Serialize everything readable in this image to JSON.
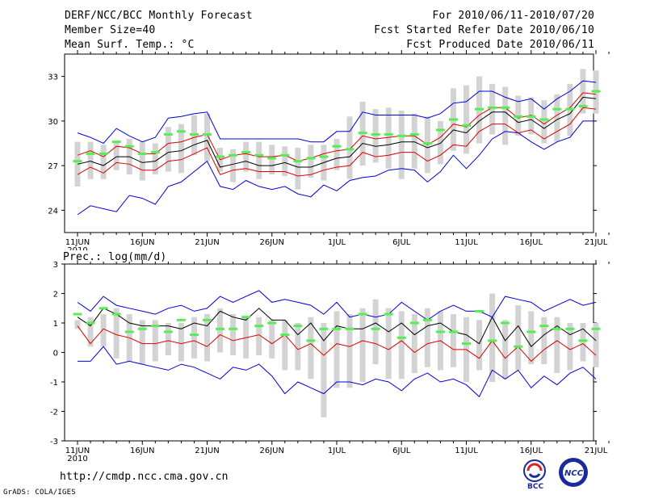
{
  "header": {
    "title": "DERF/NCC/BCC Monthly Forecast",
    "member_size": "Member Size=40",
    "variable1": "Mean Surf. Temp.: °C",
    "period": "For 2010/06/11-2010/07/20",
    "refer_date": "Fcst Started Refer Date 2010/06/10",
    "produced_date": "Fcst Produced Date 2010/06/11"
  },
  "footer": {
    "url": "http://cmdp.ncc.cma.gov.cn",
    "grads": "GrADS: COLA/IGES",
    "logo_bcc": "BCC",
    "logo_ncc": "NCC"
  },
  "colors": {
    "max_min": "#0000dd",
    "ens_mean": "#000000",
    "quantile": "#dd0000",
    "box": "#d3d3d3",
    "marker": "#55ee55"
  },
  "chart_data": [
    {
      "type": "line",
      "title": "Mean Surf. Temp.: °C",
      "x_tick_labels": [
        "11JUN",
        "16JUN",
        "21JUN",
        "26JUN",
        "1JUL",
        "6JUL",
        "11JUL",
        "16JUL",
        "21JUL"
      ],
      "x_start_label": "2010",
      "ylim": [
        22.5,
        34.5
      ],
      "y_ticks": [
        24,
        27,
        30,
        33
      ],
      "series": [
        {
          "name": "max",
          "values": [
            29.2,
            28.9,
            28.5,
            29.5,
            29.0,
            28.6,
            28.9,
            30.2,
            30.3,
            30.5,
            30.6,
            28.8,
            28.8,
            28.8,
            28.8,
            28.8,
            28.8,
            28.8,
            28.6,
            28.6,
            29.3,
            29.3,
            30.6,
            30.4,
            30.4,
            30.4,
            30.4,
            30.2,
            30.5,
            31.2,
            31.3,
            32.0,
            32.0,
            31.6,
            31.3,
            31.5,
            30.8,
            31.5,
            32.0,
            32.7,
            32.6
          ]
        },
        {
          "name": "upper",
          "values": [
            27.7,
            28.0,
            27.6,
            28.3,
            28.2,
            27.8,
            27.8,
            28.5,
            28.6,
            28.9,
            29.1,
            27.4,
            27.7,
            27.8,
            27.6,
            27.6,
            27.7,
            27.3,
            27.5,
            27.8,
            28.0,
            28.1,
            29.0,
            28.8,
            28.9,
            29.0,
            29.0,
            28.4,
            28.9,
            29.8,
            29.6,
            30.4,
            30.9,
            30.9,
            30.2,
            30.4,
            29.8,
            30.4,
            30.9,
            31.9,
            31.8
          ]
        },
        {
          "name": "mean",
          "values": [
            27.1,
            27.3,
            27.0,
            27.6,
            27.6,
            27.2,
            27.3,
            27.9,
            28.0,
            28.4,
            28.7,
            26.9,
            27.1,
            27.3,
            27.0,
            27.0,
            27.2,
            26.9,
            26.9,
            27.2,
            27.5,
            27.6,
            28.5,
            28.3,
            28.4,
            28.6,
            28.6,
            28.2,
            28.5,
            29.4,
            29.2,
            30.0,
            30.6,
            30.6,
            29.9,
            30.1,
            29.5,
            30.1,
            30.5,
            31.6,
            31.5
          ]
        },
        {
          "name": "lower",
          "values": [
            26.4,
            26.9,
            26.5,
            27.2,
            27.1,
            26.7,
            26.7,
            27.3,
            27.4,
            27.8,
            28.2,
            26.4,
            26.7,
            26.8,
            26.6,
            26.6,
            26.6,
            26.3,
            26.4,
            26.7,
            26.9,
            27.0,
            27.9,
            27.6,
            27.7,
            27.9,
            27.9,
            27.3,
            27.7,
            28.4,
            28.3,
            29.3,
            29.8,
            29.8,
            29.2,
            29.4,
            28.8,
            29.3,
            29.8,
            30.9,
            30.8
          ]
        },
        {
          "name": "min",
          "values": [
            23.7,
            24.3,
            24.1,
            23.9,
            25.0,
            24.8,
            24.4,
            25.6,
            25.9,
            26.6,
            27.3,
            25.6,
            25.4,
            26.0,
            25.6,
            25.4,
            25.6,
            25.1,
            24.9,
            25.7,
            25.3,
            26.0,
            26.2,
            26.3,
            26.7,
            26.8,
            26.7,
            25.9,
            26.6,
            27.7,
            26.8,
            27.7,
            28.8,
            29.3,
            29.2,
            28.6,
            28.1,
            28.6,
            28.9,
            30.0,
            30.0
          ]
        },
        {
          "name": "box_low",
          "values": [
            25.6,
            26.1,
            26.1,
            26.7,
            26.4,
            26.0,
            26.4,
            26.6,
            26.5,
            27.7,
            27.3,
            26.6,
            25.9,
            26.6,
            26.1,
            26.4,
            26.3,
            25.4,
            26.2,
            26.0,
            26.7,
            26.1,
            27.0,
            27.2,
            26.8,
            26.1,
            26.8,
            26.5,
            27.1,
            28.0,
            27.8,
            28.5,
            29.1,
            28.4,
            29.0,
            29.1,
            28.5,
            28.6,
            29.0,
            30.5,
            30.5
          ]
        },
        {
          "name": "box_high",
          "values": [
            28.6,
            28.6,
            28.4,
            28.6,
            28.8,
            28.6,
            28.5,
            29.6,
            29.8,
            30.4,
            30.5,
            28.2,
            28.1,
            28.6,
            28.6,
            28.4,
            28.3,
            28.2,
            28.4,
            28.4,
            28.8,
            30.3,
            31.3,
            30.8,
            30.9,
            30.7,
            30.5,
            30.3,
            30.0,
            32.2,
            32.4,
            33.0,
            32.5,
            32.3,
            31.7,
            31.6,
            31.4,
            31.8,
            32.5,
            33.5,
            33.4
          ]
        },
        {
          "name": "marker",
          "values": [
            27.3,
            27.8,
            27.8,
            28.6,
            28.3,
            27.8,
            27.9,
            29.1,
            29.3,
            29.1,
            29.1,
            27.6,
            27.7,
            27.9,
            27.7,
            27.5,
            27.7,
            27.3,
            27.5,
            27.6,
            28.3,
            28.1,
            29.2,
            29.1,
            29.1,
            29.0,
            29.1,
            28.5,
            29.4,
            30.1,
            29.7,
            30.8,
            30.9,
            30.9,
            30.3,
            30.3,
            30.1,
            30.8,
            30.8,
            31.0,
            32.0
          ]
        }
      ]
    },
    {
      "type": "line",
      "title": "Prec.: log(mm/d)",
      "x_tick_labels": [
        "11JUN",
        "16JUN",
        "21JUN",
        "26JUN",
        "1JUL",
        "6JUL",
        "11JUL",
        "16JUL",
        "21JUL"
      ],
      "x_start_label": "2010",
      "ylim": [
        -3,
        3
      ],
      "y_ticks": [
        -3,
        -2,
        -1,
        0,
        1,
        2,
        3
      ],
      "series": [
        {
          "name": "max",
          "values": [
            1.7,
            1.4,
            1.9,
            1.6,
            1.5,
            1.4,
            1.3,
            1.5,
            1.6,
            1.4,
            1.5,
            1.9,
            1.7,
            1.9,
            2.1,
            1.7,
            1.8,
            1.7,
            1.6,
            1.3,
            1.7,
            1.2,
            1.3,
            1.2,
            1.3,
            1.7,
            1.4,
            1.1,
            1.4,
            1.6,
            1.4,
            1.4,
            1.2,
            1.9,
            1.8,
            1.7,
            1.4,
            1.6,
            1.8,
            1.6,
            1.7
          ]
        },
        {
          "name": "mean",
          "values": [
            1.2,
            0.9,
            1.5,
            1.3,
            1.0,
            0.9,
            0.9,
            0.9,
            0.8,
            1.0,
            0.9,
            1.4,
            1.2,
            1.1,
            1.5,
            1.1,
            1.1,
            0.6,
            1.0,
            0.4,
            0.9,
            0.8,
            0.8,
            1.0,
            0.7,
            1.0,
            0.6,
            0.9,
            1.0,
            0.7,
            0.6,
            0.3,
            1.2,
            0.4,
            0.9,
            0.2,
            0.6,
            0.9,
            0.6,
            0.8,
            0.4
          ]
        },
        {
          "name": "quantile",
          "values": [
            0.9,
            0.3,
            0.8,
            0.6,
            0.5,
            0.3,
            0.3,
            0.4,
            0.3,
            0.4,
            0.2,
            0.6,
            0.4,
            0.5,
            0.6,
            0.3,
            0.6,
            0.1,
            0.3,
            -0.1,
            0.3,
            0.2,
            0.4,
            0.3,
            0.1,
            0.4,
            0.0,
            0.3,
            0.4,
            0.1,
            0.1,
            -0.2,
            0.4,
            -0.2,
            0.2,
            -0.3,
            0.1,
            0.4,
            0.1,
            0.3,
            -0.1
          ]
        },
        {
          "name": "min",
          "values": [
            -0.3,
            -0.3,
            0.2,
            -0.4,
            -0.3,
            -0.4,
            -0.5,
            -0.6,
            -0.4,
            -0.5,
            -0.7,
            -0.9,
            -0.5,
            -0.6,
            -0.4,
            -0.8,
            -1.4,
            -1.0,
            -1.2,
            -1.4,
            -1.0,
            -1.0,
            -1.1,
            -0.9,
            -1.0,
            -1.3,
            -0.9,
            -0.7,
            -1.0,
            -0.9,
            -1.1,
            -1.5,
            -0.6,
            -0.9,
            -0.6,
            -1.2,
            -0.8,
            -1.1,
            -0.7,
            -0.5,
            -0.9
          ]
        },
        {
          "name": "box_low",
          "values": [
            0.8,
            0.2,
            0.2,
            -0.2,
            -0.3,
            -0.4,
            -0.3,
            -0.1,
            -0.3,
            -0.2,
            -0.3,
            0.0,
            -0.1,
            -0.2,
            -0.1,
            -0.2,
            -0.6,
            -0.6,
            -0.9,
            -2.2,
            -1.2,
            -1.2,
            -1.0,
            -0.4,
            -0.9,
            -0.9,
            -0.7,
            -0.5,
            -0.6,
            -0.5,
            -1.0,
            -0.6,
            -1.0,
            -0.9,
            -0.6,
            -0.4,
            -0.4,
            -0.7,
            -0.6,
            -0.3,
            -0.5
          ]
        },
        {
          "name": "box_high",
          "values": [
            1.1,
            1.2,
            1.3,
            1.5,
            1.3,
            1.1,
            1.1,
            1.0,
            1.0,
            1.2,
            1.3,
            1.5,
            1.3,
            1.2,
            1.2,
            1.1,
            1.1,
            1.0,
            1.2,
            1.0,
            1.4,
            1.3,
            1.5,
            1.8,
            1.5,
            1.4,
            1.3,
            1.5,
            1.4,
            1.3,
            1.2,
            1.1,
            2.0,
            1.1,
            1.6,
            1.4,
            1.2,
            1.2,
            1.0,
            1.0,
            1.0
          ]
        },
        {
          "name": "marker",
          "values": [
            1.3,
            1.0,
            1.5,
            1.3,
            0.7,
            0.8,
            0.9,
            0.7,
            1.1,
            0.6,
            1.1,
            0.8,
            0.8,
            1.2,
            0.9,
            1.0,
            0.6,
            0.9,
            0.4,
            0.8,
            0.8,
            0.8,
            1.3,
            0.8,
            1.3,
            0.5,
            1.0,
            1.1,
            0.7,
            0.7,
            0.3,
            1.4,
            0.4,
            1.0,
            0.2,
            0.7,
            0.9,
            0.8,
            0.8,
            0.4,
            0.8
          ]
        }
      ]
    }
  ]
}
